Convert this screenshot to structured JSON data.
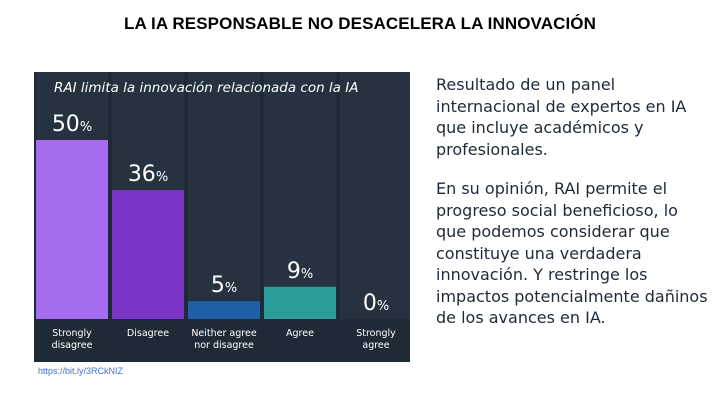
{
  "title": "LA IA RESPONSABLE NO DESACELERA LA INNOVACIÓN",
  "source_link": "https://bit.ly/3RCkNIZ",
  "paragraphs": [
    "Resultado de un panel internacional de expertos en IA que incluye académicos y profesionales.",
    "En su opinión, RAI permite el progreso social beneficioso, lo que podemos considerar que constituye una verdadera innovación. Y restringe los impactos potencialmente dañinos de los avances en IA."
  ],
  "colors": {
    "panel_bg": "#1e2a36",
    "column_bg": "#26323f",
    "strongly_disagree": "#a66cf0",
    "disagree": "#7b36c8",
    "neither": "#1f5fa8",
    "agree": "#2a9c9a",
    "strongly_agree": "#2a9c9a"
  },
  "chart_data": {
    "type": "bar",
    "title": "RAI limita la innovación relacionada con la IA",
    "categories": [
      "Strongly\ndisagree",
      "Disagree",
      "Neither agree\nnor disagree",
      "Agree",
      "Strongly\nagree"
    ],
    "values": [
      50,
      36,
      5,
      9,
      0
    ],
    "value_suffix": "%",
    "ylim": [
      0,
      50
    ],
    "xlabel": "",
    "ylabel": "",
    "grid": false,
    "legend": "none"
  }
}
